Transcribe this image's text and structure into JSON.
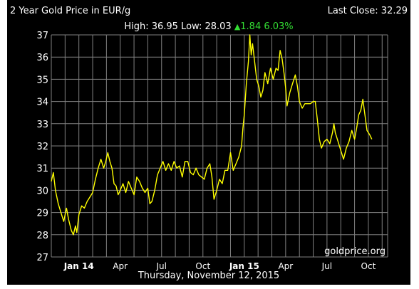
{
  "header": {
    "title": "2 Year Gold Price in EUR/g",
    "last_close_label": "Last Close: 32.29",
    "stats_hl": "High: 36.95 Low: 28.03",
    "change_arrow": "▲",
    "change_text": "1.84 6.03%"
  },
  "footer": {
    "date": "Thursday, November 12, 2015"
  },
  "watermark": "goldprice.org",
  "colors": {
    "background": "#000000",
    "line": "#ffff00",
    "grid": "#808080",
    "text": "#ffffff",
    "change": "#33dd33"
  },
  "chart_data": {
    "type": "line",
    "title": "2 Year Gold Price in EUR/g",
    "xlabel": "",
    "ylabel": "",
    "ylim": [
      27,
      37
    ],
    "y_ticks": [
      "27",
      "28",
      "29",
      "30",
      "31",
      "32",
      "33",
      "34",
      "35",
      "36",
      "37"
    ],
    "x_ticks": [
      {
        "label": "Jan 14",
        "month": 2,
        "bold": true
      },
      {
        "label": "Apr",
        "month": 5,
        "bold": false
      },
      {
        "label": "Jul",
        "month": 8,
        "bold": false
      },
      {
        "label": "Oct",
        "month": 11,
        "bold": false
      },
      {
        "label": "Jan 15",
        "month": 14,
        "bold": true
      },
      {
        "label": "Apr",
        "month": 17,
        "bold": false
      },
      {
        "label": "Jul",
        "month": 20,
        "bold": false
      },
      {
        "label": "Oct",
        "month": 23,
        "bold": false
      }
    ],
    "x_range_months": [
      0,
      24.4
    ],
    "grid": true,
    "series": [
      {
        "values": [
          [
            0.0,
            30.4
          ],
          [
            0.15,
            30.8
          ],
          [
            0.3,
            30.0
          ],
          [
            0.5,
            29.4
          ],
          [
            0.7,
            29.0
          ],
          [
            0.9,
            28.6
          ],
          [
            1.1,
            29.2
          ],
          [
            1.25,
            28.7
          ],
          [
            1.45,
            28.2
          ],
          [
            1.6,
            28.0
          ],
          [
            1.75,
            28.4
          ],
          [
            1.85,
            28.1
          ],
          [
            2.0,
            28.9
          ],
          [
            2.2,
            29.3
          ],
          [
            2.4,
            29.2
          ],
          [
            2.6,
            29.5
          ],
          [
            2.8,
            29.7
          ],
          [
            3.0,
            29.9
          ],
          [
            3.2,
            30.5
          ],
          [
            3.4,
            31.0
          ],
          [
            3.6,
            31.4
          ],
          [
            3.8,
            31.0
          ],
          [
            3.95,
            31.3
          ],
          [
            4.1,
            31.7
          ],
          [
            4.25,
            31.3
          ],
          [
            4.4,
            31.0
          ],
          [
            4.55,
            30.3
          ],
          [
            4.7,
            30.2
          ],
          [
            4.85,
            29.8
          ],
          [
            5.0,
            30.0
          ],
          [
            5.2,
            30.3
          ],
          [
            5.4,
            29.9
          ],
          [
            5.6,
            30.4
          ],
          [
            5.8,
            30.1
          ],
          [
            6.0,
            29.8
          ],
          [
            6.2,
            30.6
          ],
          [
            6.4,
            30.4
          ],
          [
            6.6,
            30.1
          ],
          [
            6.8,
            29.9
          ],
          [
            7.0,
            30.1
          ],
          [
            7.15,
            29.4
          ],
          [
            7.3,
            29.5
          ],
          [
            7.5,
            30.0
          ],
          [
            7.7,
            30.7
          ],
          [
            7.9,
            31.0
          ],
          [
            8.1,
            31.3
          ],
          [
            8.3,
            30.9
          ],
          [
            8.5,
            31.2
          ],
          [
            8.7,
            30.9
          ],
          [
            8.9,
            31.3
          ],
          [
            9.1,
            31.0
          ],
          [
            9.3,
            31.1
          ],
          [
            9.5,
            30.6
          ],
          [
            9.7,
            31.3
          ],
          [
            9.9,
            31.3
          ],
          [
            10.1,
            30.8
          ],
          [
            10.3,
            30.7
          ],
          [
            10.5,
            31.0
          ],
          [
            10.7,
            30.7
          ],
          [
            10.9,
            30.6
          ],
          [
            11.1,
            30.5
          ],
          [
            11.3,
            31.0
          ],
          [
            11.5,
            31.2
          ],
          [
            11.65,
            30.6
          ],
          [
            11.8,
            29.6
          ],
          [
            12.0,
            30.0
          ],
          [
            12.2,
            30.5
          ],
          [
            12.4,
            30.3
          ],
          [
            12.6,
            30.9
          ],
          [
            12.8,
            30.9
          ],
          [
            13.0,
            31.7
          ],
          [
            13.2,
            30.9
          ],
          [
            13.4,
            31.2
          ],
          [
            13.6,
            31.5
          ],
          [
            13.8,
            32.0
          ],
          [
            13.9,
            32.8
          ],
          [
            14.0,
            33.4
          ],
          [
            14.15,
            34.8
          ],
          [
            14.3,
            35.8
          ],
          [
            14.4,
            37.0
          ],
          [
            14.5,
            36.1
          ],
          [
            14.6,
            36.6
          ],
          [
            14.75,
            35.8
          ],
          [
            14.9,
            35.0
          ],
          [
            15.05,
            34.7
          ],
          [
            15.2,
            34.2
          ],
          [
            15.35,
            34.5
          ],
          [
            15.5,
            35.3
          ],
          [
            15.7,
            34.8
          ],
          [
            15.9,
            35.5
          ],
          [
            16.1,
            35.0
          ],
          [
            16.3,
            35.5
          ],
          [
            16.45,
            35.4
          ],
          [
            16.6,
            36.3
          ],
          [
            16.75,
            35.9
          ],
          [
            16.9,
            35.2
          ],
          [
            17.0,
            34.6
          ],
          [
            17.1,
            33.8
          ],
          [
            17.3,
            34.4
          ],
          [
            17.5,
            34.8
          ],
          [
            17.7,
            35.2
          ],
          [
            17.85,
            34.7
          ],
          [
            18.0,
            34.0
          ],
          [
            18.2,
            33.7
          ],
          [
            18.4,
            33.9
          ],
          [
            18.6,
            33.9
          ],
          [
            18.8,
            33.9
          ],
          [
            19.0,
            34.0
          ],
          [
            19.15,
            34.0
          ],
          [
            19.3,
            33.2
          ],
          [
            19.45,
            32.3
          ],
          [
            19.6,
            31.9
          ],
          [
            19.8,
            32.2
          ],
          [
            20.0,
            32.3
          ],
          [
            20.2,
            32.1
          ],
          [
            20.4,
            32.6
          ],
          [
            20.5,
            33.0
          ],
          [
            20.6,
            32.6
          ],
          [
            20.8,
            32.2
          ],
          [
            21.0,
            31.8
          ],
          [
            21.2,
            31.4
          ],
          [
            21.4,
            31.9
          ],
          [
            21.6,
            32.2
          ],
          [
            21.8,
            32.7
          ],
          [
            22.0,
            32.3
          ],
          [
            22.15,
            32.8
          ],
          [
            22.3,
            33.4
          ],
          [
            22.45,
            33.6
          ],
          [
            22.6,
            34.1
          ],
          [
            22.75,
            33.4
          ],
          [
            22.9,
            32.7
          ],
          [
            23.1,
            32.5
          ],
          [
            23.25,
            32.3
          ]
        ]
      }
    ]
  }
}
